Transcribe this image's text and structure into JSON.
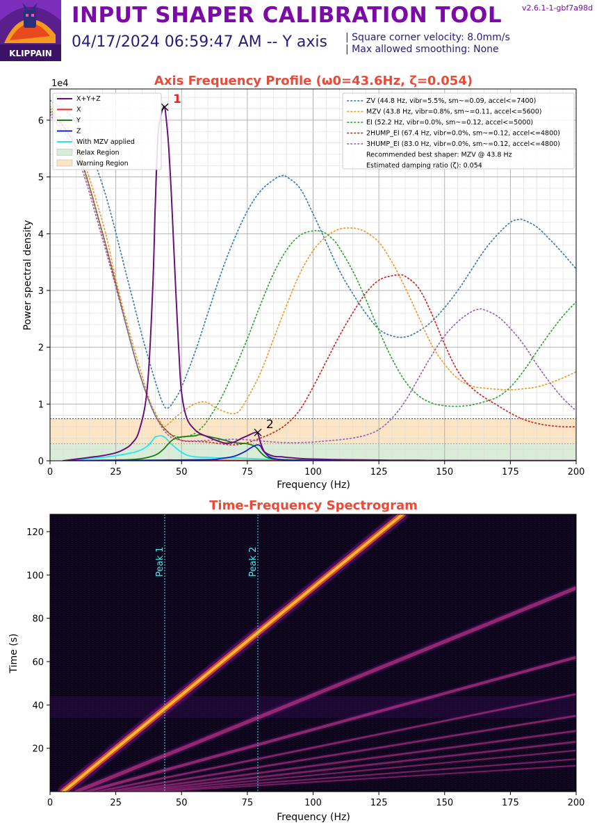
{
  "header": {
    "title": "INPUT SHAPER CALIBRATION TOOL",
    "subtitle": "04/17/2024 06:59:47 AM -- Y axis",
    "info_line1": "| Square corner velocity: 8.0mm/s",
    "info_line2": "| Max allowed smoothing: None",
    "version": "v2.6.1-1-gbf7a98d",
    "logo_text": "KLIPPAIN"
  },
  "chart_data": [
    {
      "type": "line",
      "title": "Axis Frequency Profile (ω0=43.6Hz, ζ=0.054)",
      "xlabel": "Frequency (Hz)",
      "ylabel": "Power spectral density",
      "y_scale_label": "1e4",
      "xlim": [
        0,
        200
      ],
      "ylim": [
        0,
        6.55
      ],
      "x_ticks": [
        0,
        25,
        50,
        75,
        100,
        125,
        150,
        175,
        200
      ],
      "y_ticks": [
        0,
        1,
        2,
        3,
        4,
        5,
        6
      ],
      "grid": true,
      "regions": [
        {
          "name": "Relax Region",
          "from": 0,
          "to": 0.3,
          "color": "#d9ecd7"
        },
        {
          "name": "Warning Region",
          "from": 0.3,
          "to": 0.74,
          "color": "#fbe5c4"
        }
      ],
      "series": [
        {
          "name": "X+Y+Z",
          "color": "#6a0f7c",
          "style": "solid",
          "x": [
            5,
            10,
            15,
            20,
            25,
            28,
            31,
            34,
            37,
            39,
            40,
            41,
            42,
            43,
            43.6,
            44,
            45,
            46,
            47,
            48,
            49,
            50,
            52,
            55,
            57,
            60,
            62,
            65,
            67,
            70,
            73,
            75,
            78,
            79,
            80,
            81,
            82,
            85,
            88,
            90,
            95,
            100,
            110,
            120,
            130,
            140,
            150,
            200
          ],
          "y": [
            0,
            0.03,
            0.06,
            0.09,
            0.14,
            0.2,
            0.3,
            0.55,
            1.3,
            3.0,
            4.5,
            5.7,
            6.05,
            6.22,
            6.23,
            6.1,
            5.6,
            4.8,
            3.8,
            2.8,
            1.9,
            1.2,
            0.75,
            0.55,
            0.48,
            0.42,
            0.38,
            0.33,
            0.31,
            0.33,
            0.4,
            0.44,
            0.5,
            0.48,
            0.32,
            0.2,
            0.14,
            0.08,
            0.07,
            0.06,
            0.04,
            0.03,
            0.02,
            0.015,
            0.01,
            0.008,
            0.005,
            0.002
          ]
        },
        {
          "name": "X",
          "color": "#e8251f",
          "style": "solid",
          "x": [
            5,
            20,
            40,
            45,
            50,
            60,
            80,
            100,
            150,
            200
          ],
          "y": [
            0,
            0.005,
            0.01,
            0.015,
            0.012,
            0.008,
            0.005,
            0.004,
            0.002,
            0
          ]
        },
        {
          "name": "Y",
          "color": "#14800f",
          "style": "solid",
          "x": [
            5,
            10,
            20,
            30,
            35,
            40,
            43,
            45,
            47,
            50,
            55,
            57,
            60,
            65,
            70,
            75,
            78,
            80,
            82,
            85,
            90,
            100,
            150,
            200
          ],
          "y": [
            0,
            0.005,
            0.01,
            0.02,
            0.04,
            0.1,
            0.2,
            0.3,
            0.38,
            0.42,
            0.44,
            0.46,
            0.43,
            0.38,
            0.32,
            0.3,
            0.25,
            0.15,
            0.07,
            0.03,
            0.02,
            0.01,
            0.004,
            0
          ]
        },
        {
          "name": "Z",
          "color": "#1220d8",
          "style": "solid",
          "x": [
            5,
            20,
            40,
            60,
            65,
            70,
            74,
            76,
            78,
            79,
            80,
            81,
            83,
            85,
            88,
            90,
            95,
            100,
            150,
            200
          ],
          "y": [
            0,
            0.005,
            0.01,
            0.02,
            0.04,
            0.08,
            0.16,
            0.22,
            0.27,
            0.28,
            0.26,
            0.18,
            0.08,
            0.04,
            0.02,
            0.01,
            0.01,
            0.005,
            0.002,
            0
          ]
        },
        {
          "name": "With MZV applied",
          "color": "#22e8ea",
          "style": "solid",
          "x": [
            5,
            10,
            15,
            20,
            25,
            30,
            34,
            37,
            39,
            40,
            42,
            43,
            44,
            45,
            46,
            48,
            50,
            52,
            55,
            60,
            65,
            70,
            75,
            80,
            85,
            90,
            100,
            150,
            200
          ],
          "y": [
            0,
            0.02,
            0.04,
            0.06,
            0.09,
            0.13,
            0.18,
            0.26,
            0.36,
            0.42,
            0.44,
            0.43,
            0.4,
            0.35,
            0.3,
            0.22,
            0.15,
            0.1,
            0.07,
            0.06,
            0.05,
            0.05,
            0.04,
            0.03,
            0.02,
            0.015,
            0.01,
            0.005,
            0.002
          ]
        },
        {
          "name": "ZV (44.8 Hz, vibr=5.5%, sm~=0.09, accel<=7400)",
          "color": "#3f82b8",
          "style": "dotted",
          "x": [
            0,
            10,
            20,
            30,
            35,
            40,
            43,
            44.8,
            47,
            50,
            55,
            60,
            65,
            70,
            75,
            80,
            85,
            88,
            90,
            95,
            100,
            105,
            110,
            115,
            120,
            125,
            130,
            135,
            140,
            145,
            150,
            155,
            160,
            165,
            170,
            175,
            178,
            180,
            185,
            190,
            195,
            200
          ],
          "y": [
            6.35,
            5.95,
            4.85,
            3.1,
            2.2,
            1.4,
            1.0,
            0.93,
            1.05,
            1.3,
            1.9,
            2.6,
            3.3,
            3.9,
            4.4,
            4.75,
            4.95,
            5.02,
            5.0,
            4.8,
            4.35,
            3.85,
            3.35,
            2.95,
            2.6,
            2.32,
            2.2,
            2.18,
            2.28,
            2.45,
            2.7,
            3.0,
            3.35,
            3.7,
            3.98,
            4.2,
            4.25,
            4.24,
            4.12,
            3.9,
            3.65,
            3.38
          ]
        },
        {
          "name": "MZV (43.8 Hz, vibr=0.8%, sm~=0.11, accel<=5600)",
          "color": "#f59b32",
          "style": "dotted",
          "x": [
            0,
            10,
            20,
            25,
            30,
            35,
            38,
            40,
            43,
            45,
            48,
            52,
            55,
            58,
            60,
            62,
            65,
            68,
            70,
            72,
            75,
            80,
            85,
            90,
            95,
            100,
            105,
            110,
            115,
            118,
            120,
            125,
            130,
            135,
            140,
            145,
            150,
            155,
            160,
            165,
            170,
            175,
            180,
            185,
            190,
            195,
            200
          ],
          "y": [
            6.25,
            5.6,
            4.2,
            3.2,
            2.3,
            1.5,
            1.05,
            0.85,
            0.62,
            0.65,
            0.78,
            0.92,
            1.0,
            1.04,
            1.02,
            0.96,
            0.89,
            0.84,
            0.83,
            0.88,
            1.1,
            1.55,
            2.15,
            2.75,
            3.3,
            3.7,
            3.95,
            4.08,
            4.1,
            4.07,
            4.03,
            3.85,
            3.5,
            3.05,
            2.55,
            2.05,
            1.7,
            1.45,
            1.32,
            1.28,
            1.26,
            1.25,
            1.27,
            1.3,
            1.37,
            1.46,
            1.57
          ]
        },
        {
          "name": "EI (52.2 Hz, vibr=0.0%, sm~=0.12, accel<=5000)",
          "color": "#38a83a",
          "style": "dotted",
          "x": [
            0,
            10,
            20,
            30,
            35,
            40,
            45,
            48,
            50,
            52,
            55,
            58,
            60,
            65,
            70,
            75,
            80,
            85,
            90,
            95,
            100,
            103,
            105,
            108,
            110,
            115,
            120,
            125,
            130,
            135,
            140,
            145,
            150,
            155,
            158,
            160,
            165,
            170,
            175,
            180,
            185,
            190,
            195,
            200
          ],
          "y": [
            6.2,
            5.5,
            4.0,
            2.2,
            1.4,
            0.8,
            0.5,
            0.43,
            0.42,
            0.43,
            0.48,
            0.6,
            0.72,
            1.1,
            1.6,
            2.15,
            2.75,
            3.3,
            3.72,
            3.97,
            4.05,
            4.04,
            4.0,
            3.88,
            3.75,
            3.35,
            2.85,
            2.3,
            1.8,
            1.4,
            1.15,
            1.02,
            0.97,
            0.96,
            0.97,
            0.98,
            1.04,
            1.12,
            1.3,
            1.58,
            1.92,
            2.25,
            2.55,
            2.8
          ]
        },
        {
          "name": "2HUMP_EI (67.4 Hz, vibr=0.0%, sm~=0.12, accel<=4800)",
          "color": "#d22b2b",
          "style": "dotted",
          "x": [
            0,
            10,
            20,
            30,
            35,
            40,
            45,
            50,
            55,
            60,
            65,
            70,
            75,
            80,
            85,
            90,
            95,
            100,
            105,
            110,
            115,
            120,
            125,
            130,
            133,
            135,
            140,
            145,
            150,
            155,
            160,
            165,
            170,
            175,
            180,
            185,
            190,
            195,
            200
          ],
          "y": [
            6.15,
            5.5,
            4.0,
            2.2,
            1.4,
            0.8,
            0.5,
            0.36,
            0.34,
            0.33,
            0.3,
            0.28,
            0.32,
            0.4,
            0.5,
            0.65,
            0.9,
            1.3,
            1.75,
            2.2,
            2.6,
            2.95,
            3.18,
            3.26,
            3.27,
            3.25,
            3.05,
            2.6,
            2.05,
            1.58,
            1.3,
            1.12,
            0.98,
            0.84,
            0.73,
            0.66,
            0.62,
            0.6,
            0.6
          ]
        },
        {
          "name": "3HUMP_EI (83.0 Hz, vibr=0.0%, sm~=0.12, accel<=4800)",
          "color": "#9a68bf",
          "style": "dotted",
          "x": [
            0,
            10,
            20,
            30,
            35,
            40,
            45,
            50,
            55,
            60,
            65,
            70,
            75,
            80,
            85,
            90,
            95,
            100,
            105,
            110,
            115,
            120,
            125,
            130,
            135,
            140,
            145,
            150,
            155,
            160,
            163,
            165,
            170,
            175,
            180,
            185,
            190,
            195,
            200
          ],
          "y": [
            6.1,
            5.4,
            3.9,
            2.2,
            1.4,
            0.8,
            0.45,
            0.36,
            0.35,
            0.36,
            0.37,
            0.38,
            0.37,
            0.35,
            0.33,
            0.32,
            0.32,
            0.33,
            0.35,
            0.37,
            0.4,
            0.45,
            0.55,
            0.75,
            1.05,
            1.45,
            1.85,
            2.2,
            2.45,
            2.62,
            2.67,
            2.66,
            2.55,
            2.33,
            2.05,
            1.7,
            1.38,
            1.1,
            0.88
          ]
        }
      ],
      "peaks": [
        {
          "label": "1",
          "x": 43.6,
          "y": 6.23,
          "color": "#e8251f"
        },
        {
          "label": "2",
          "x": 79.0,
          "y": 0.5,
          "color": "#000000"
        }
      ],
      "legend_left": [
        "X+Y+Z",
        "X",
        "Y",
        "Z",
        "With MZV applied",
        "Relax Region",
        "Warning Region"
      ],
      "legend_right_notes": [
        "Recommended best shaper: MZV @ 43.8 Hz",
        "Estimated damping ratio (ζ): 0.054"
      ],
      "legend_placement": "top"
    },
    {
      "type": "heatmap",
      "title": "Time-Frequency Spectrogram",
      "xlabel": "Frequency (Hz)",
      "ylabel": "Time (s)",
      "xlim": [
        0,
        200
      ],
      "ylim": [
        0,
        128
      ],
      "x_ticks": [
        0,
        25,
        50,
        75,
        100,
        125,
        150,
        175,
        200
      ],
      "y_ticks": [
        20,
        40,
        60,
        80,
        100,
        120
      ],
      "colormap": "inferno",
      "harmonic_lines": [
        {
          "order": 1,
          "from": [
            5,
            0
          ],
          "to": [
            134,
            128
          ],
          "intensity": 1.0,
          "width": 7
        },
        {
          "order": 2,
          "from": [
            10,
            0
          ],
          "to": [
            200,
            94
          ],
          "intensity": 0.55,
          "width": 4
        },
        {
          "order": 3,
          "from": [
            14,
            0
          ],
          "to": [
            200,
            62
          ],
          "intensity": 0.5,
          "width": 3
        },
        {
          "order": 4,
          "from": [
            18,
            0
          ],
          "to": [
            200,
            45
          ],
          "intensity": 0.35,
          "width": 2
        },
        {
          "order": 5,
          "from": [
            22,
            0
          ],
          "to": [
            200,
            35
          ],
          "intensity": 0.3,
          "width": 2
        },
        {
          "order": 6,
          "from": [
            26,
            0
          ],
          "to": [
            200,
            28
          ],
          "intensity": 0.25,
          "width": 2
        },
        {
          "order": 7,
          "from": [
            30,
            0
          ],
          "to": [
            200,
            23
          ],
          "intensity": 0.22,
          "width": 2
        },
        {
          "order": 8,
          "from": [
            34,
            0
          ],
          "to": [
            200,
            19
          ],
          "intensity": 0.2,
          "width": 1.5
        },
        {
          "order": 9,
          "from": [
            38,
            0
          ],
          "to": [
            200,
            15
          ],
          "intensity": 0.18,
          "width": 1.5
        },
        {
          "order": 10,
          "from": [
            42,
            0
          ],
          "to": [
            200,
            12
          ],
          "intensity": 0.16,
          "width": 1.5
        }
      ],
      "peak_markers": [
        {
          "label": "Peak 1",
          "x": 43.6
        },
        {
          "label": "Peak 2",
          "x": 79.0
        }
      ]
    }
  ]
}
